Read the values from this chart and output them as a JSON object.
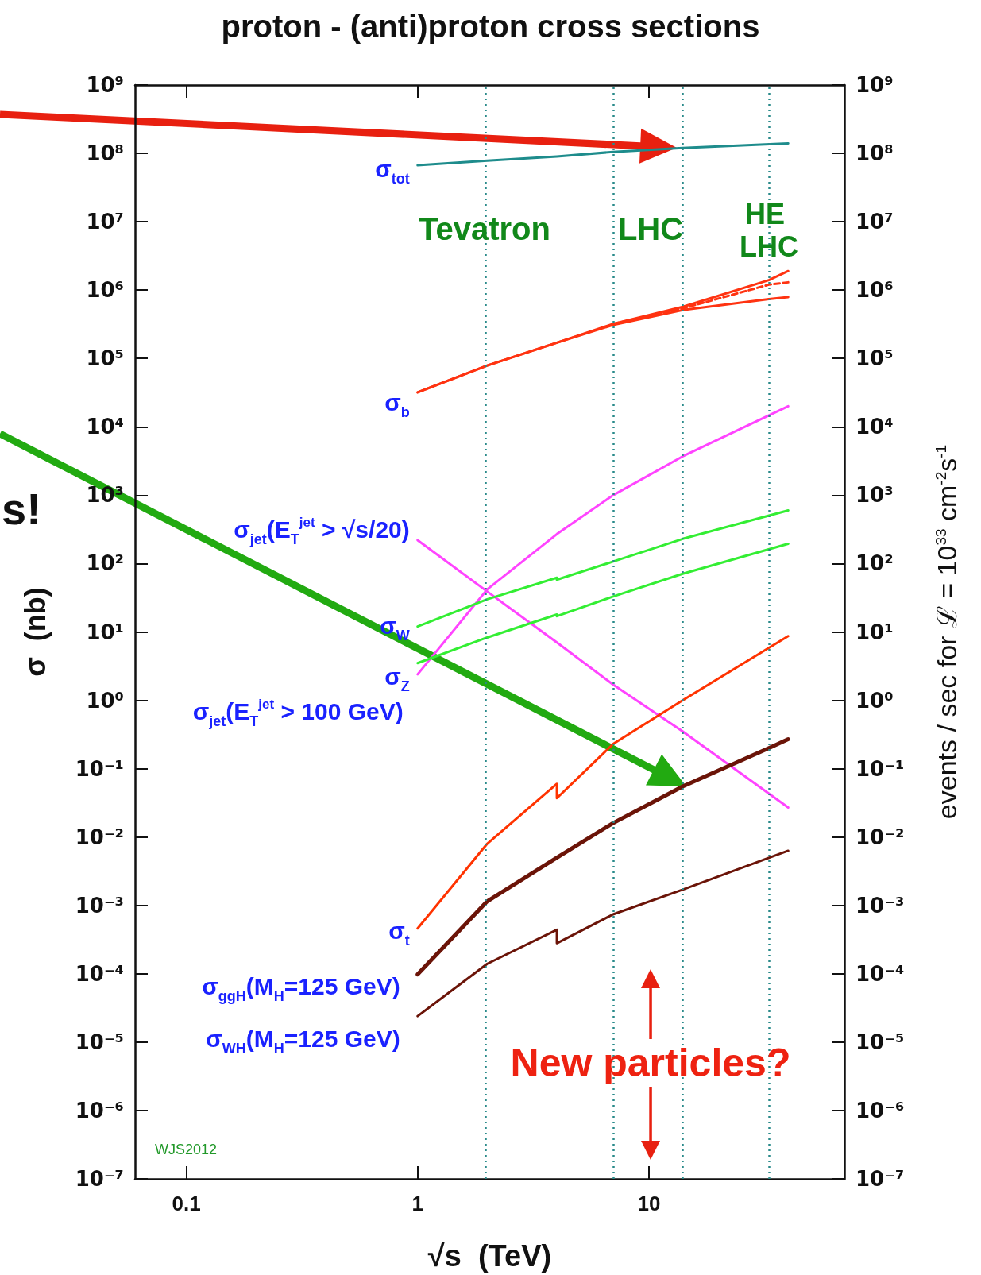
{
  "chart_data": {
    "type": "line",
    "title": "proton - (anti)proton cross sections",
    "xlabel": "√s  (TeV)",
    "ylabel": "σ  (nb)",
    "y2label": "events / sec for ℒ = 10$^{33}$ cm$^{-2}$s$^{-1}$",
    "log": "xy",
    "grid": false,
    "legend": false,
    "marker": "none",
    "xlim": [
      0.06,
      70
    ],
    "xticks": [
      0.1,
      1,
      10
    ],
    "ylim": [
      1e-07,
      1000000000.0
    ],
    "yticks": [
      {
        "value": 1000000000.0,
        "label": "10⁹"
      },
      {
        "value": 100000000.0,
        "label": "10⁸"
      },
      {
        "value": 10000000.0,
        "label": "10⁷"
      },
      {
        "value": 1000000.0,
        "label": "10⁶"
      },
      {
        "value": 100000.0,
        "label": "10⁵"
      },
      {
        "value": 10000.0,
        "label": "10⁴"
      },
      {
        "value": 1000.0,
        "label": "10³"
      },
      {
        "value": 100,
        "label": "10²"
      },
      {
        "value": 10,
        "label": "10¹"
      },
      {
        "value": 1,
        "label": "10⁰"
      },
      {
        "value": 0.1,
        "label": "10⁻¹"
      },
      {
        "value": 0.01,
        "label": "10⁻²"
      },
      {
        "value": 0.001,
        "label": "10⁻³"
      },
      {
        "value": 0.0001,
        "label": "10⁻⁴"
      },
      {
        "value": 1e-05,
        "label": "10⁻⁵"
      },
      {
        "value": 1e-06,
        "label": "10⁻⁶"
      },
      {
        "value": 1e-07,
        "label": "10⁻⁷"
      }
    ],
    "series": [
      {
        "name": "σ$_{tot}$",
        "color": "#1e8c8c",
        "x": [
          1,
          2,
          4,
          7,
          14,
          40
        ],
        "values": [
          67000000.0,
          78000000.0,
          90000000.0,
          105000000.0,
          120000000.0,
          140000000.0
        ]
      },
      {
        "name": "σ$_{b}$",
        "color": "#ff3311",
        "x": [
          1,
          2,
          4,
          7,
          14,
          33,
          40
        ],
        "values": [
          32000.0,
          79000.0,
          170000.0,
          320000.0,
          570000.0,
          1400000.0,
          1900000.0
        ]
      },
      {
        "color": "#ff3311",
        "x": [
          1,
          2,
          4,
          7,
          14,
          33,
          40
        ],
        "values": [
          32000.0,
          79000.0,
          170000.0,
          310000.0,
          510000.0,
          740000.0,
          790000.0
        ]
      },
      {
        "color": "#ff3311",
        "line_style": "dashed",
        "x": [
          7,
          14,
          33,
          40
        ],
        "values": [
          320000.0,
          540000.0,
          1200000.0,
          1300000.0
        ]
      },
      {
        "name": "σ$_{jet}$(E$_{T}$$^{jet}$ > √s/20)",
        "color": "#ff44ff",
        "x": [
          1,
          2,
          4,
          7,
          14,
          40
        ],
        "values": [
          220,
          39,
          7,
          1.7,
          0.35,
          0.027
        ]
      },
      {
        "name": "σ$_{jet}$(E$_{T}$$^{jet}$ > 100 GeV)",
        "color": "#ff44ff",
        "x": [
          1,
          2,
          4,
          7,
          14,
          40
        ],
        "values": [
          2.4,
          42,
          270,
          1000,
          3700,
          20000
        ]
      },
      {
        "name": "σ$_{W}$",
        "color": "#33ee33",
        "x": [
          1,
          2,
          4,
          4,
          7,
          14,
          40
        ],
        "values": [
          12,
          30,
          62,
          58,
          107,
          230,
          600
        ]
      },
      {
        "name": "σ$_{Z}$",
        "color": "#33ee33",
        "x": [
          1,
          2,
          4,
          4,
          7,
          14,
          40
        ],
        "values": [
          3.5,
          8.3,
          18,
          17,
          33,
          71,
          195
        ]
      },
      {
        "name": "σ$_{t}$",
        "color": "#ff3300",
        "x": [
          1,
          2,
          4,
          4,
          7,
          14,
          40
        ],
        "values": [
          0.00046,
          0.008,
          0.06,
          0.037,
          0.23,
          1.0,
          8.7
        ]
      },
      {
        "name": "σ$_{ggH}$(M$_{H}$=125 GeV)",
        "color": "#6b1408",
        "x": [
          1,
          2,
          4,
          7,
          14,
          33,
          40
        ],
        "values": [
          9.8e-05,
          0.00115,
          0.005,
          0.016,
          0.055,
          0.2,
          0.27
        ]
      },
      {
        "name": "σ$_{WH}$(M$_{H}$=125 GeV)",
        "color": "#6b1408",
        "x": [
          1,
          2,
          4,
          4,
          7,
          14,
          40
        ],
        "values": [
          2.4e-05,
          0.00014,
          0.00044,
          0.00028,
          0.00074,
          0.0017,
          0.0063
        ]
      }
    ],
    "ref_lines": [
      {
        "axis": "x",
        "value": 1.96,
        "color": "#2a8a8a",
        "line_style": "dotted"
      },
      {
        "axis": "x",
        "value": 7,
        "color": "#2a8a8a",
        "line_style": "dotted"
      },
      {
        "axis": "x",
        "value": 14,
        "color": "#2a8a8a",
        "line_style": "dotted"
      },
      {
        "axis": "x",
        "value": 33,
        "color": "#2a8a8a",
        "line_style": "dotted"
      }
    ],
    "annotations": [
      "Tevatron",
      "LHC",
      "HE LHC",
      "New particles?",
      "WJS2012",
      "s!"
    ]
  }
}
